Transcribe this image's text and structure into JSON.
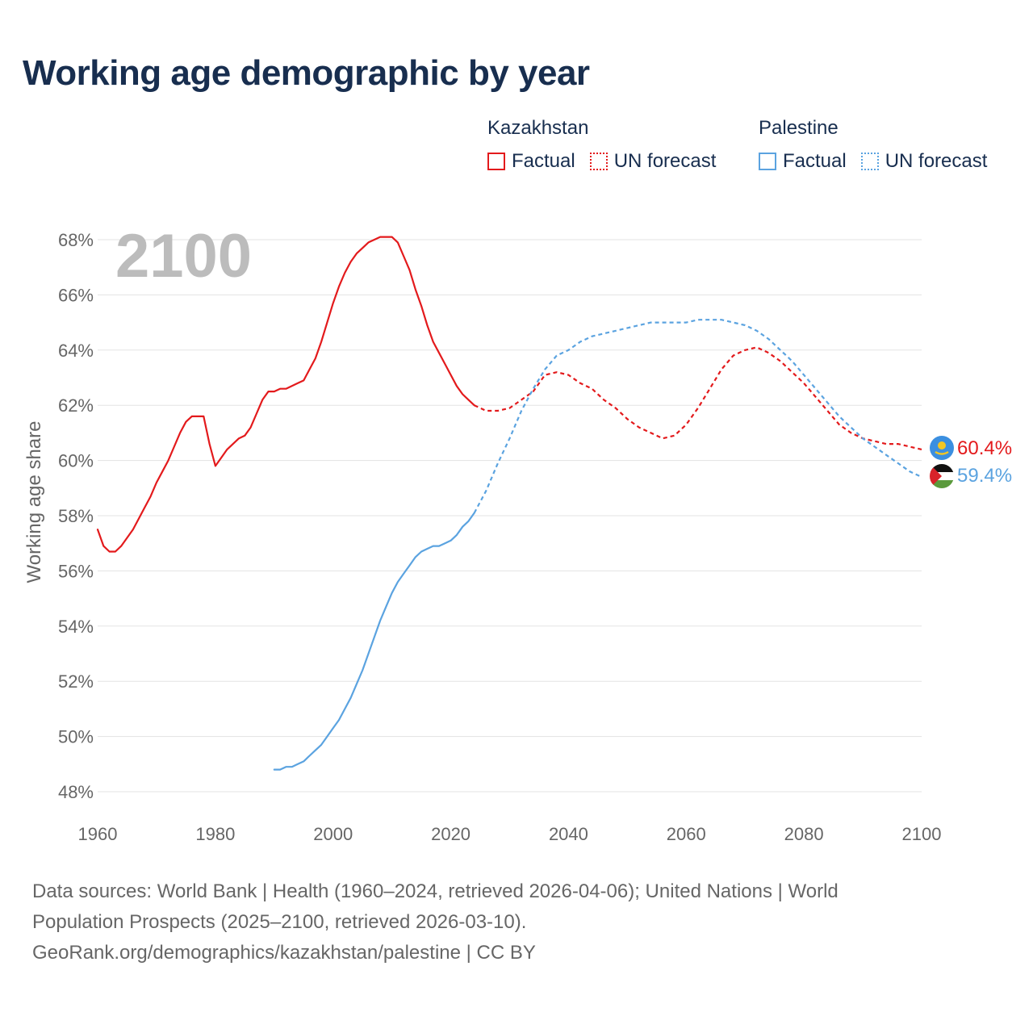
{
  "title": "Working age demographic by year",
  "legend": {
    "groups": [
      {
        "name": "Kazakhstan",
        "factual": "Factual",
        "forecast": "UN forecast",
        "color": "#e31a1c"
      },
      {
        "name": "Palestine",
        "factual": "Factual",
        "forecast": "UN forecast",
        "color": "#5ba3e0"
      }
    ]
  },
  "year_label": "2100",
  "end_labels": {
    "kazakhstan": "60.4%",
    "palestine": "59.4%"
  },
  "footer": {
    "line1": "Data sources: World Bank | Health (1960–2024, retrieved 2026-04-06); United Nations | World",
    "line2": "Population Prospects (2025–2100, retrieved 2026-03-10).",
    "line3": "GeoRank.org/demographics/kazakhstan/palestine | CC BY"
  },
  "chart_data": {
    "type": "line",
    "title": "Working age demographic by year",
    "xlabel": "",
    "ylabel": "Working age share",
    "xlim": [
      1960,
      2100
    ],
    "ylim": [
      48,
      68
    ],
    "x_ticks": [
      "1960",
      "1980",
      "2000",
      "2020",
      "2040",
      "2060",
      "2080",
      "2100"
    ],
    "y_ticks": [
      "48%",
      "50%",
      "52%",
      "54%",
      "56%",
      "58%",
      "60%",
      "62%",
      "64%",
      "66%",
      "68%"
    ],
    "grid": true,
    "series": [
      {
        "name": "Kazakhstan",
        "segment": "Factual",
        "color": "#e31a1c",
        "x": [
          1960,
          1961,
          1962,
          1963,
          1964,
          1965,
          1966,
          1967,
          1968,
          1969,
          1970,
          1971,
          1972,
          1973,
          1974,
          1975,
          1976,
          1977,
          1978,
          1979,
          1980,
          1981,
          1982,
          1983,
          1984,
          1985,
          1986,
          1987,
          1988,
          1989,
          1990,
          1991,
          1992,
          1993,
          1994,
          1995,
          1996,
          1997,
          1998,
          1999,
          2000,
          2001,
          2002,
          2003,
          2004,
          2005,
          2006,
          2007,
          2008,
          2009,
          2010,
          2011,
          2012,
          2013,
          2014,
          2015,
          2016,
          2017,
          2018,
          2019,
          2020,
          2021,
          2022,
          2023,
          2024
        ],
        "values": [
          57.5,
          56.9,
          56.7,
          56.7,
          56.9,
          57.2,
          57.5,
          57.9,
          58.3,
          58.7,
          59.2,
          59.6,
          60.0,
          60.5,
          61.0,
          61.4,
          61.6,
          61.6,
          61.6,
          60.6,
          59.8,
          60.1,
          60.4,
          60.6,
          60.8,
          60.9,
          61.2,
          61.7,
          62.2,
          62.5,
          62.5,
          62.6,
          62.6,
          62.7,
          62.8,
          62.9,
          63.3,
          63.7,
          64.3,
          65.0,
          65.7,
          66.3,
          66.8,
          67.2,
          67.5,
          67.7,
          67.9,
          68.0,
          68.1,
          68.1,
          68.1,
          67.9,
          67.4,
          66.9,
          66.2,
          65.6,
          64.9,
          64.3,
          63.9,
          63.5,
          63.1,
          62.7,
          62.4,
          62.2,
          62.0
        ]
      },
      {
        "name": "Kazakhstan",
        "segment": "UN forecast",
        "color": "#e31a1c",
        "x": [
          2024,
          2026,
          2028,
          2030,
          2032,
          2034,
          2036,
          2038,
          2040,
          2042,
          2044,
          2046,
          2048,
          2050,
          2052,
          2054,
          2056,
          2058,
          2060,
          2062,
          2064,
          2066,
          2068,
          2070,
          2072,
          2074,
          2076,
          2078,
          2080,
          2082,
          2084,
          2086,
          2088,
          2090,
          2092,
          2094,
          2096,
          2098,
          2100
        ],
        "values": [
          62.0,
          61.8,
          61.8,
          61.9,
          62.2,
          62.5,
          63.1,
          63.2,
          63.1,
          62.8,
          62.6,
          62.2,
          61.9,
          61.5,
          61.2,
          61.0,
          60.8,
          60.9,
          61.3,
          61.9,
          62.6,
          63.3,
          63.8,
          64.0,
          64.1,
          63.9,
          63.6,
          63.2,
          62.8,
          62.3,
          61.8,
          61.3,
          61.0,
          60.8,
          60.7,
          60.6,
          60.6,
          60.5,
          60.4
        ]
      },
      {
        "name": "Palestine",
        "segment": "Factual",
        "color": "#5ba3e0",
        "x": [
          1990,
          1991,
          1992,
          1993,
          1994,
          1995,
          1996,
          1997,
          1998,
          1999,
          2000,
          2001,
          2002,
          2003,
          2004,
          2005,
          2006,
          2007,
          2008,
          2009,
          2010,
          2011,
          2012,
          2013,
          2014,
          2015,
          2016,
          2017,
          2018,
          2019,
          2020,
          2021,
          2022,
          2023,
          2024
        ],
        "values": [
          48.8,
          48.8,
          48.9,
          48.9,
          49.0,
          49.1,
          49.3,
          49.5,
          49.7,
          50.0,
          50.3,
          50.6,
          51.0,
          51.4,
          51.9,
          52.4,
          53.0,
          53.6,
          54.2,
          54.7,
          55.2,
          55.6,
          55.9,
          56.2,
          56.5,
          56.7,
          56.8,
          56.9,
          56.9,
          57.0,
          57.1,
          57.3,
          57.6,
          57.8,
          58.1
        ]
      },
      {
        "name": "Palestine",
        "segment": "UN forecast",
        "color": "#5ba3e0",
        "x": [
          2024,
          2026,
          2028,
          2030,
          2032,
          2034,
          2036,
          2038,
          2040,
          2042,
          2044,
          2046,
          2048,
          2050,
          2052,
          2054,
          2056,
          2058,
          2060,
          2062,
          2064,
          2066,
          2068,
          2070,
          2072,
          2074,
          2076,
          2078,
          2080,
          2082,
          2084,
          2086,
          2088,
          2090,
          2092,
          2094,
          2096,
          2098,
          2100
        ],
        "values": [
          58.1,
          58.9,
          59.9,
          60.8,
          61.8,
          62.6,
          63.3,
          63.8,
          64.0,
          64.3,
          64.5,
          64.6,
          64.7,
          64.8,
          64.9,
          65.0,
          65.0,
          65.0,
          65.0,
          65.1,
          65.1,
          65.1,
          65.0,
          64.9,
          64.7,
          64.4,
          64.0,
          63.6,
          63.1,
          62.6,
          62.1,
          61.6,
          61.2,
          60.8,
          60.5,
          60.2,
          59.9,
          59.6,
          59.4
        ]
      }
    ]
  }
}
